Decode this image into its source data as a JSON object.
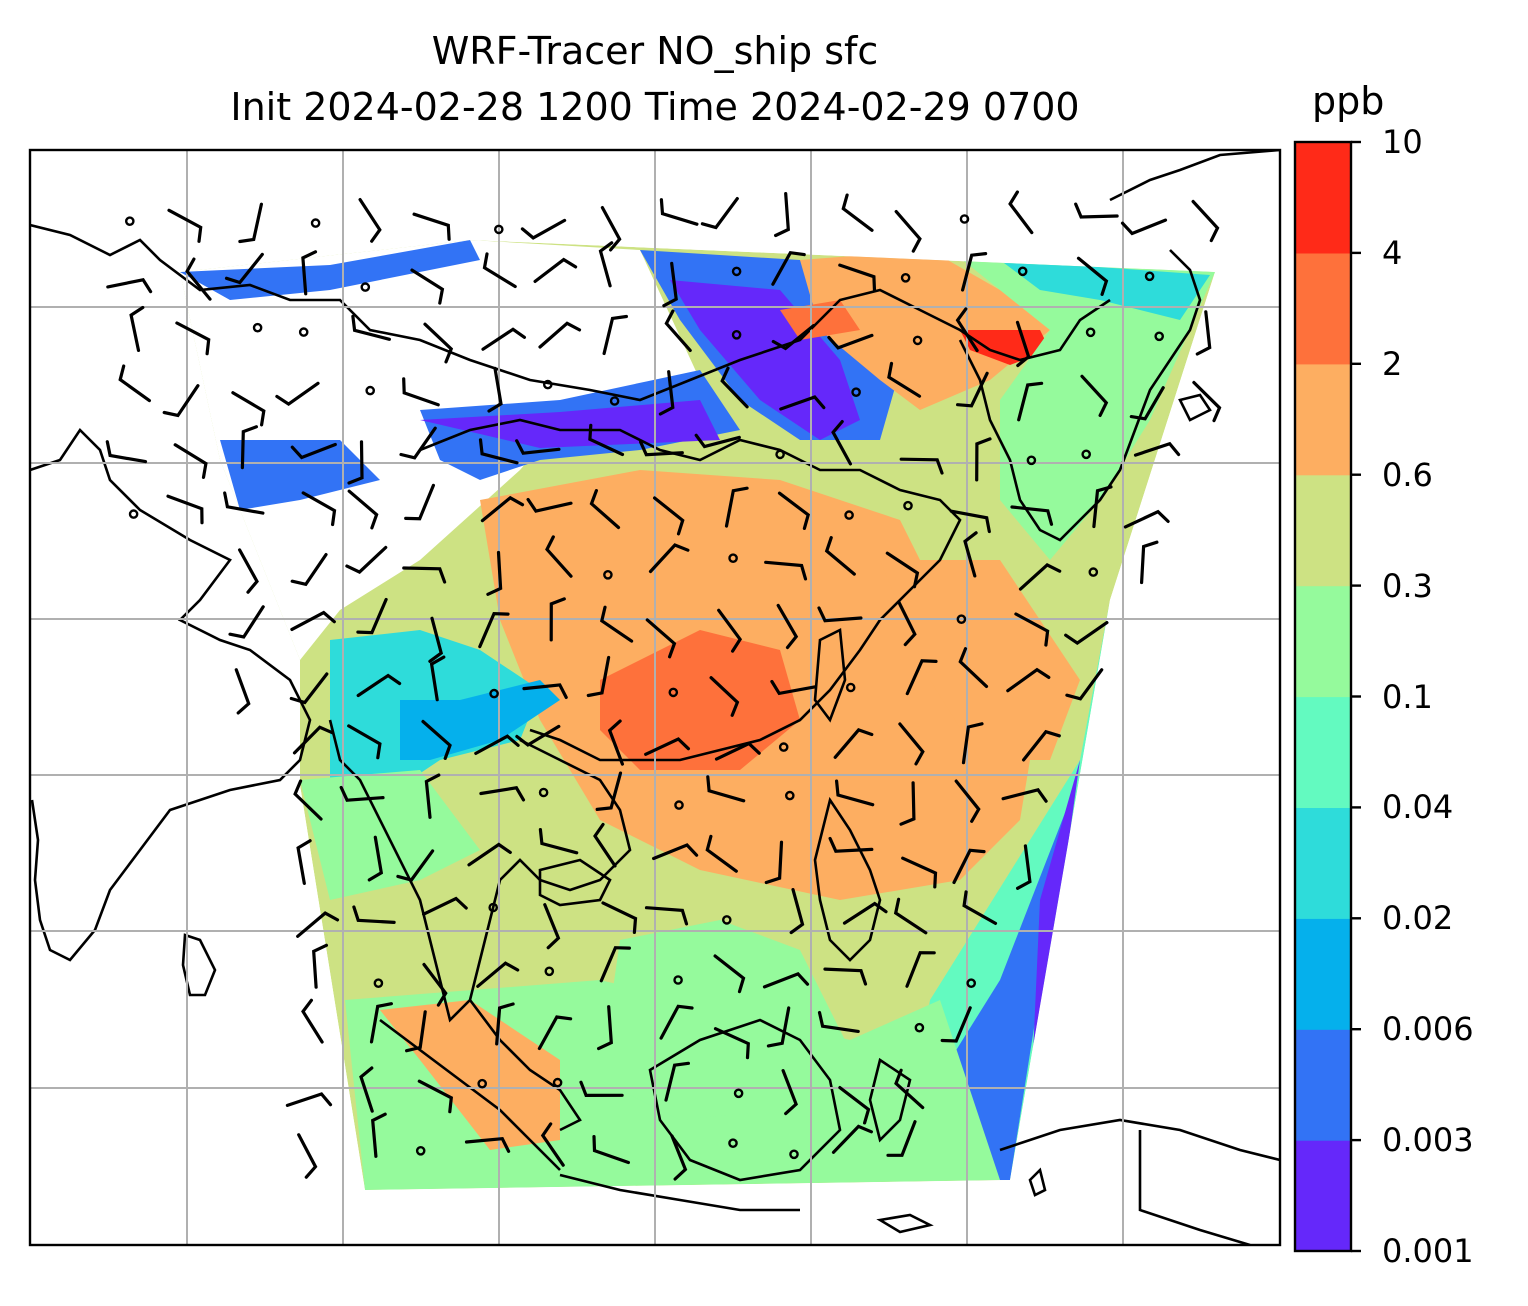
{
  "chart_data": {
    "type": "map",
    "title": "WRF-Tracer NO_ship sfc",
    "subtitle": "Init 2024-02-28 1200 Time 2024-02-29 0700",
    "variable": "NO_ship",
    "level": "sfc",
    "init_time": "2024-02-28 1200",
    "valid_time": "2024-02-29 0700",
    "colorbar": {
      "unit": "ppb",
      "levels": [
        "0.001",
        "0.003",
        "0.006",
        "0.02",
        "0.04",
        "0.1",
        "0.3",
        "0.6",
        "2",
        "4",
        "10"
      ],
      "colors": [
        "#6528fa",
        "#3273f5",
        "#05b0ec",
        "#2edcda",
        "#63fac0",
        "#95fa9c",
        "#cde283",
        "#fdae61",
        "#fe713b",
        "#ff2a18"
      ]
    },
    "grid": true,
    "overlays": [
      "coastlines",
      "wind-barbs"
    ],
    "field_pattern": "Concentrations highest (2 to 4 ppb) over the South China Sea and near the Korean peninsula coast; 0.3 to 2 ppb over southern China; lowest (0.001 to 0.006 ppb) over the northwest and east domain edges; no data over the western high terrain."
  }
}
